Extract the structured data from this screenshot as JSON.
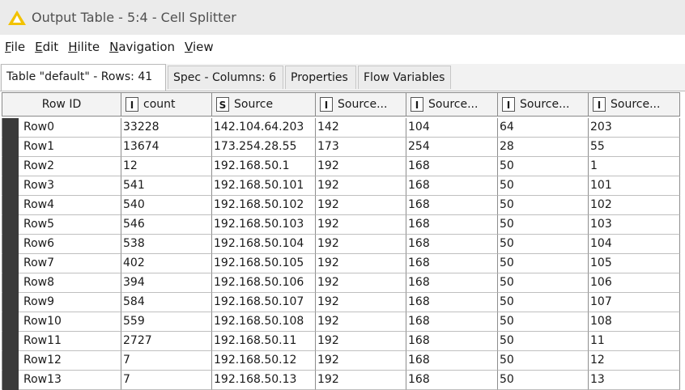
{
  "window": {
    "title": "Output Table - 5:4 - Cell Splitter"
  },
  "menu": [
    {
      "mnemonic": "F",
      "rest": "ile"
    },
    {
      "mnemonic": "E",
      "rest": "dit"
    },
    {
      "mnemonic": "H",
      "rest": "ilite"
    },
    {
      "mnemonic": "N",
      "rest": "avigation"
    },
    {
      "mnemonic": "V",
      "rest": "iew"
    }
  ],
  "tabs": [
    {
      "label": "Table \"default\" - Rows: 41",
      "active": true
    },
    {
      "label": "Spec - Columns: 6",
      "active": false
    },
    {
      "label": "Properties",
      "active": false
    },
    {
      "label": "Flow Variables",
      "active": false
    }
  ],
  "table": {
    "columns": [
      {
        "label": "Row ID",
        "type": ""
      },
      {
        "label": "count",
        "type": "I"
      },
      {
        "label": "Source",
        "type": "S"
      },
      {
        "label": "Source...",
        "type": "I"
      },
      {
        "label": "Source...",
        "type": "I"
      },
      {
        "label": "Source...",
        "type": "I"
      },
      {
        "label": "Source...",
        "type": "I"
      }
    ],
    "rows": [
      [
        "Row0",
        "33228",
        "142.104.64.203",
        "142",
        "104",
        "64",
        "203"
      ],
      [
        "Row1",
        "13674",
        "173.254.28.55",
        "173",
        "254",
        "28",
        "55"
      ],
      [
        "Row2",
        "12",
        "192.168.50.1",
        "192",
        "168",
        "50",
        "1"
      ],
      [
        "Row3",
        "541",
        "192.168.50.101",
        "192",
        "168",
        "50",
        "101"
      ],
      [
        "Row4",
        "540",
        "192.168.50.102",
        "192",
        "168",
        "50",
        "102"
      ],
      [
        "Row5",
        "546",
        "192.168.50.103",
        "192",
        "168",
        "50",
        "103"
      ],
      [
        "Row6",
        "538",
        "192.168.50.104",
        "192",
        "168",
        "50",
        "104"
      ],
      [
        "Row7",
        "402",
        "192.168.50.105",
        "192",
        "168",
        "50",
        "105"
      ],
      [
        "Row8",
        "394",
        "192.168.50.106",
        "192",
        "168",
        "50",
        "106"
      ],
      [
        "Row9",
        "584",
        "192.168.50.107",
        "192",
        "168",
        "50",
        "107"
      ],
      [
        "Row10",
        "559",
        "192.168.50.108",
        "192",
        "168",
        "50",
        "108"
      ],
      [
        "Row11",
        "2727",
        "192.168.50.11",
        "192",
        "168",
        "50",
        "11"
      ],
      [
        "Row12",
        "7",
        "192.168.50.12",
        "192",
        "168",
        "50",
        "12"
      ],
      [
        "Row13",
        "7",
        "192.168.50.13",
        "192",
        "168",
        "50",
        "13"
      ]
    ]
  }
}
